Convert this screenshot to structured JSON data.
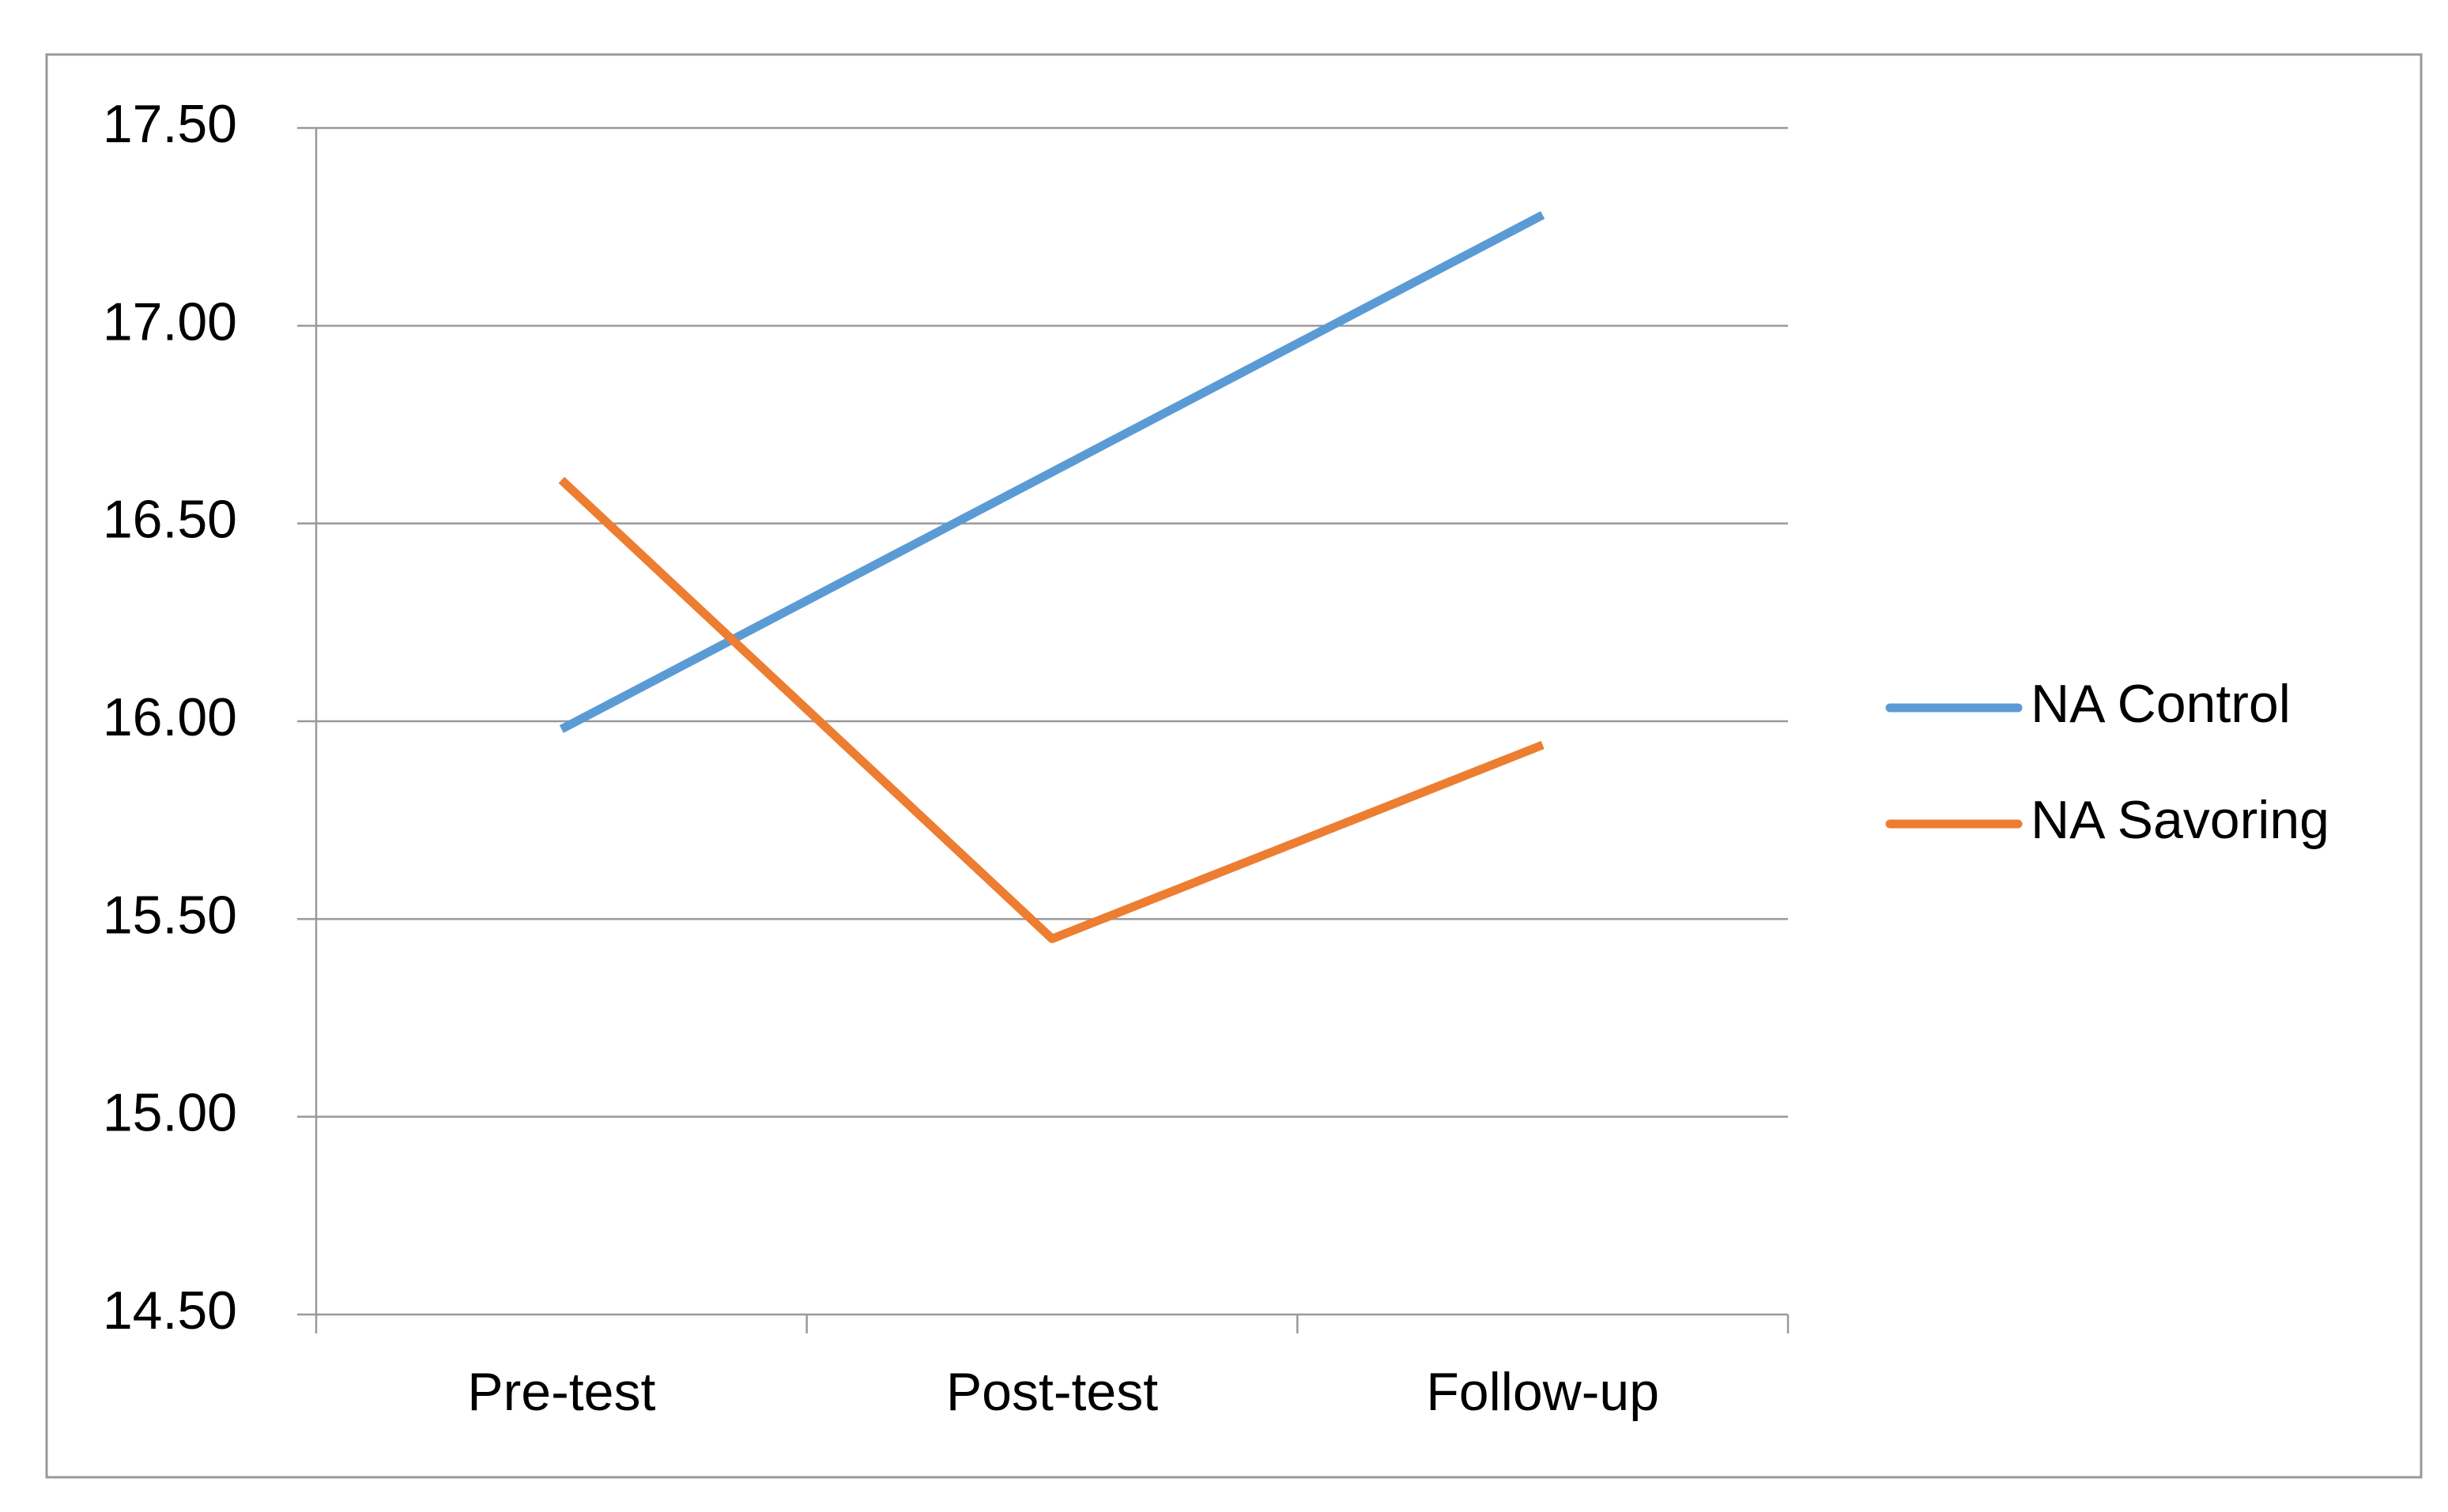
{
  "chart_data": {
    "type": "line",
    "categories": [
      "Pre-test",
      "Post-test",
      "Follow-up"
    ],
    "series": [
      {
        "name": "NA Control",
        "color": "#5b9bd5",
        "values": [
          15.98,
          16.63,
          17.28
        ]
      },
      {
        "name": "NA Savoring",
        "color": "#ed7d31",
        "values": [
          16.61,
          15.45,
          15.94
        ]
      }
    ],
    "ylim": [
      14.5,
      17.5
    ],
    "yticks": [
      {
        "value": 14.5,
        "label": "14.50"
      },
      {
        "value": 15,
        "label": "15.00"
      },
      {
        "value": 15.5,
        "label": "15.50"
      },
      {
        "value": 16,
        "label": "16.00"
      },
      {
        "value": 16.5,
        "label": "16.50"
      },
      {
        "value": 17,
        "label": "17.00"
      },
      {
        "value": 17.5,
        "label": "17.50"
      }
    ],
    "grid": true,
    "legend": "right"
  }
}
